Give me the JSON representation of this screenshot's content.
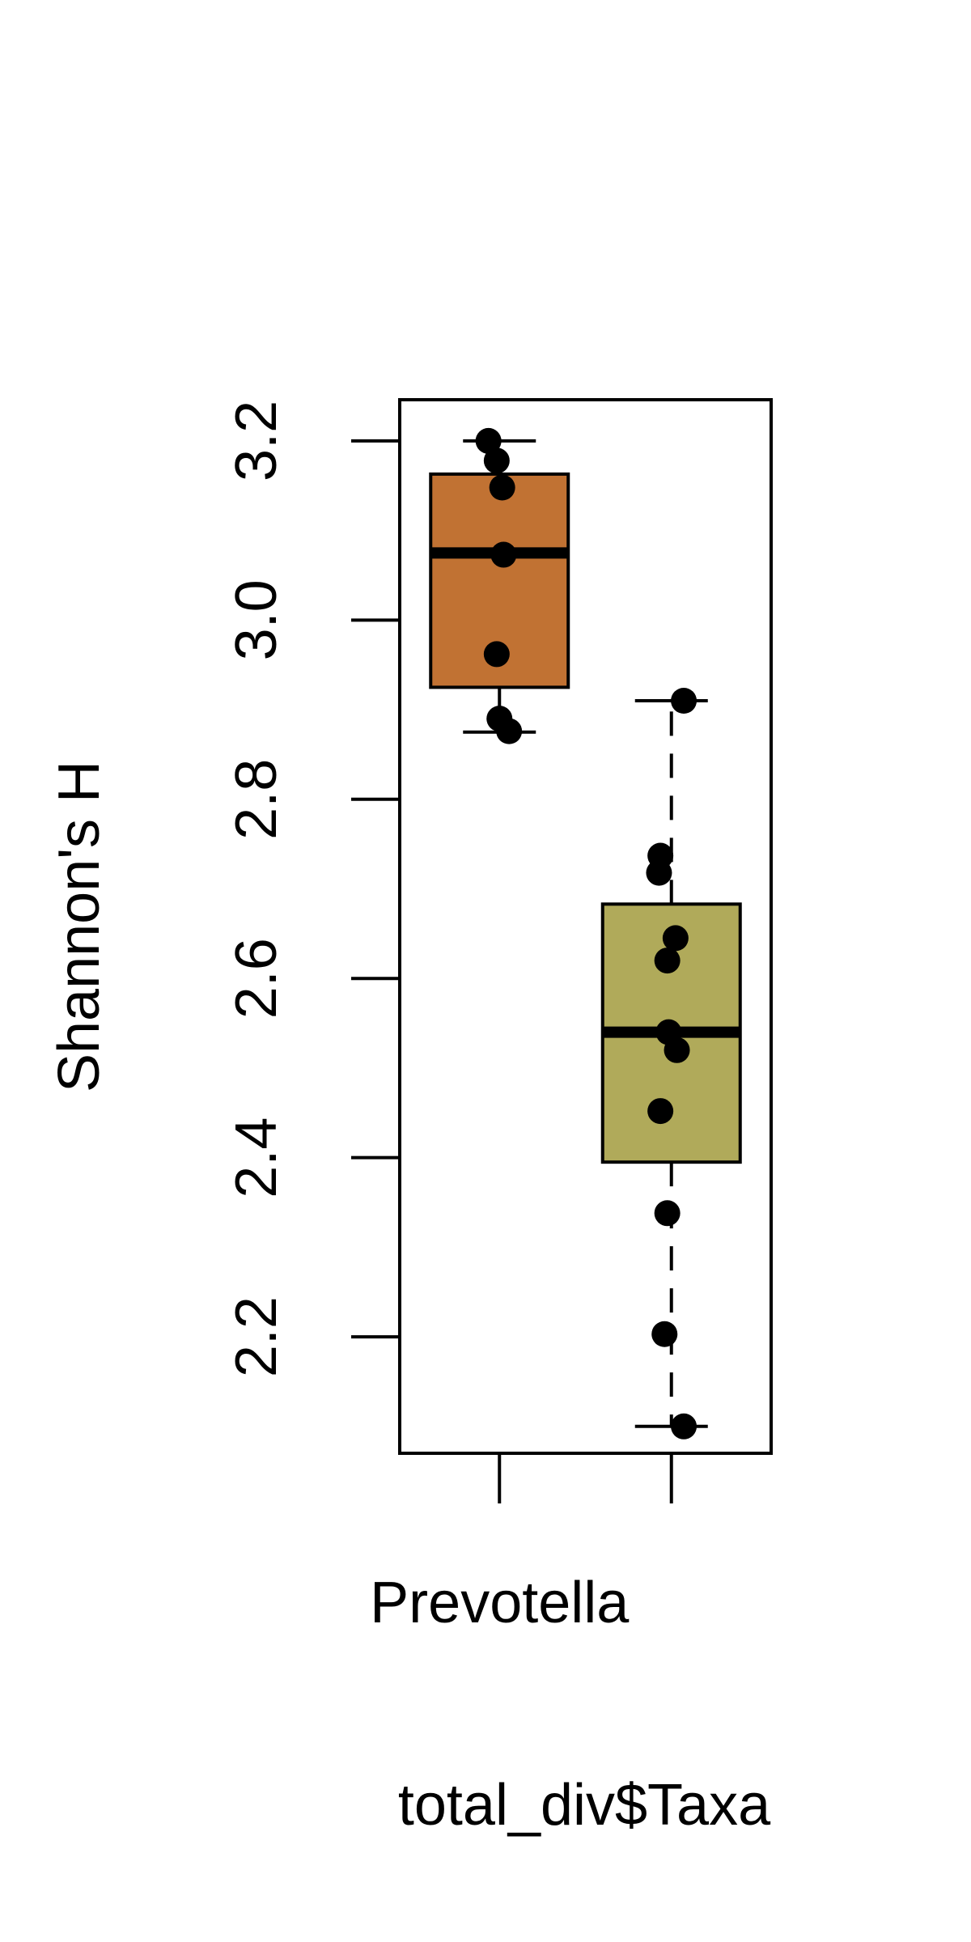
{
  "chart_data": {
    "type": "box",
    "ylabel": "Shannon's H",
    "xlabel": "total_div$Taxa",
    "ylim": [
      2.07,
      3.246
    ],
    "yticks": [
      2.2,
      2.4,
      2.6,
      2.8,
      3.0,
      3.2
    ],
    "ytick_labels": [
      "2.2",
      "2.4",
      "2.6",
      "2.8",
      "3.0",
      "3.2"
    ],
    "categories": [
      "Prevotella",
      ""
    ],
    "category_labels_shown": [
      "Prevotella"
    ],
    "grid": false,
    "legend": "none",
    "boxes": [
      {
        "name": "Prevotella",
        "color": "#c17233",
        "whisker_style": "dashed",
        "whisker_low": 2.875,
        "q1": 2.925,
        "median": 3.075,
        "q3": 3.163,
        "whisker_high": 3.2,
        "points": [
          {
            "jitter": -0.08,
            "y": 3.2
          },
          {
            "jitter": -0.02,
            "y": 3.178
          },
          {
            "jitter": 0.02,
            "y": 3.148
          },
          {
            "jitter": 0.03,
            "y": 3.073
          },
          {
            "jitter": -0.02,
            "y": 2.962
          },
          {
            "jitter": 0.0,
            "y": 2.89
          },
          {
            "jitter": 0.07,
            "y": 2.876
          }
        ]
      },
      {
        "name": "",
        "color": "#b0aa5a",
        "whisker_style": "dashed",
        "whisker_low": 2.1,
        "q1": 2.395,
        "median": 2.54,
        "q3": 2.683,
        "whisker_high": 2.91,
        "points": [
          {
            "jitter": 0.09,
            "y": 2.91
          },
          {
            "jitter": -0.08,
            "y": 2.737
          },
          {
            "jitter": -0.09,
            "y": 2.718
          },
          {
            "jitter": 0.03,
            "y": 2.645
          },
          {
            "jitter": -0.03,
            "y": 2.62
          },
          {
            "jitter": -0.02,
            "y": 2.54
          },
          {
            "jitter": 0.04,
            "y": 2.52
          },
          {
            "jitter": -0.08,
            "y": 2.452
          },
          {
            "jitter": -0.03,
            "y": 2.338
          },
          {
            "jitter": -0.05,
            "y": 2.203
          },
          {
            "jitter": 0.09,
            "y": 2.1
          }
        ]
      }
    ]
  }
}
